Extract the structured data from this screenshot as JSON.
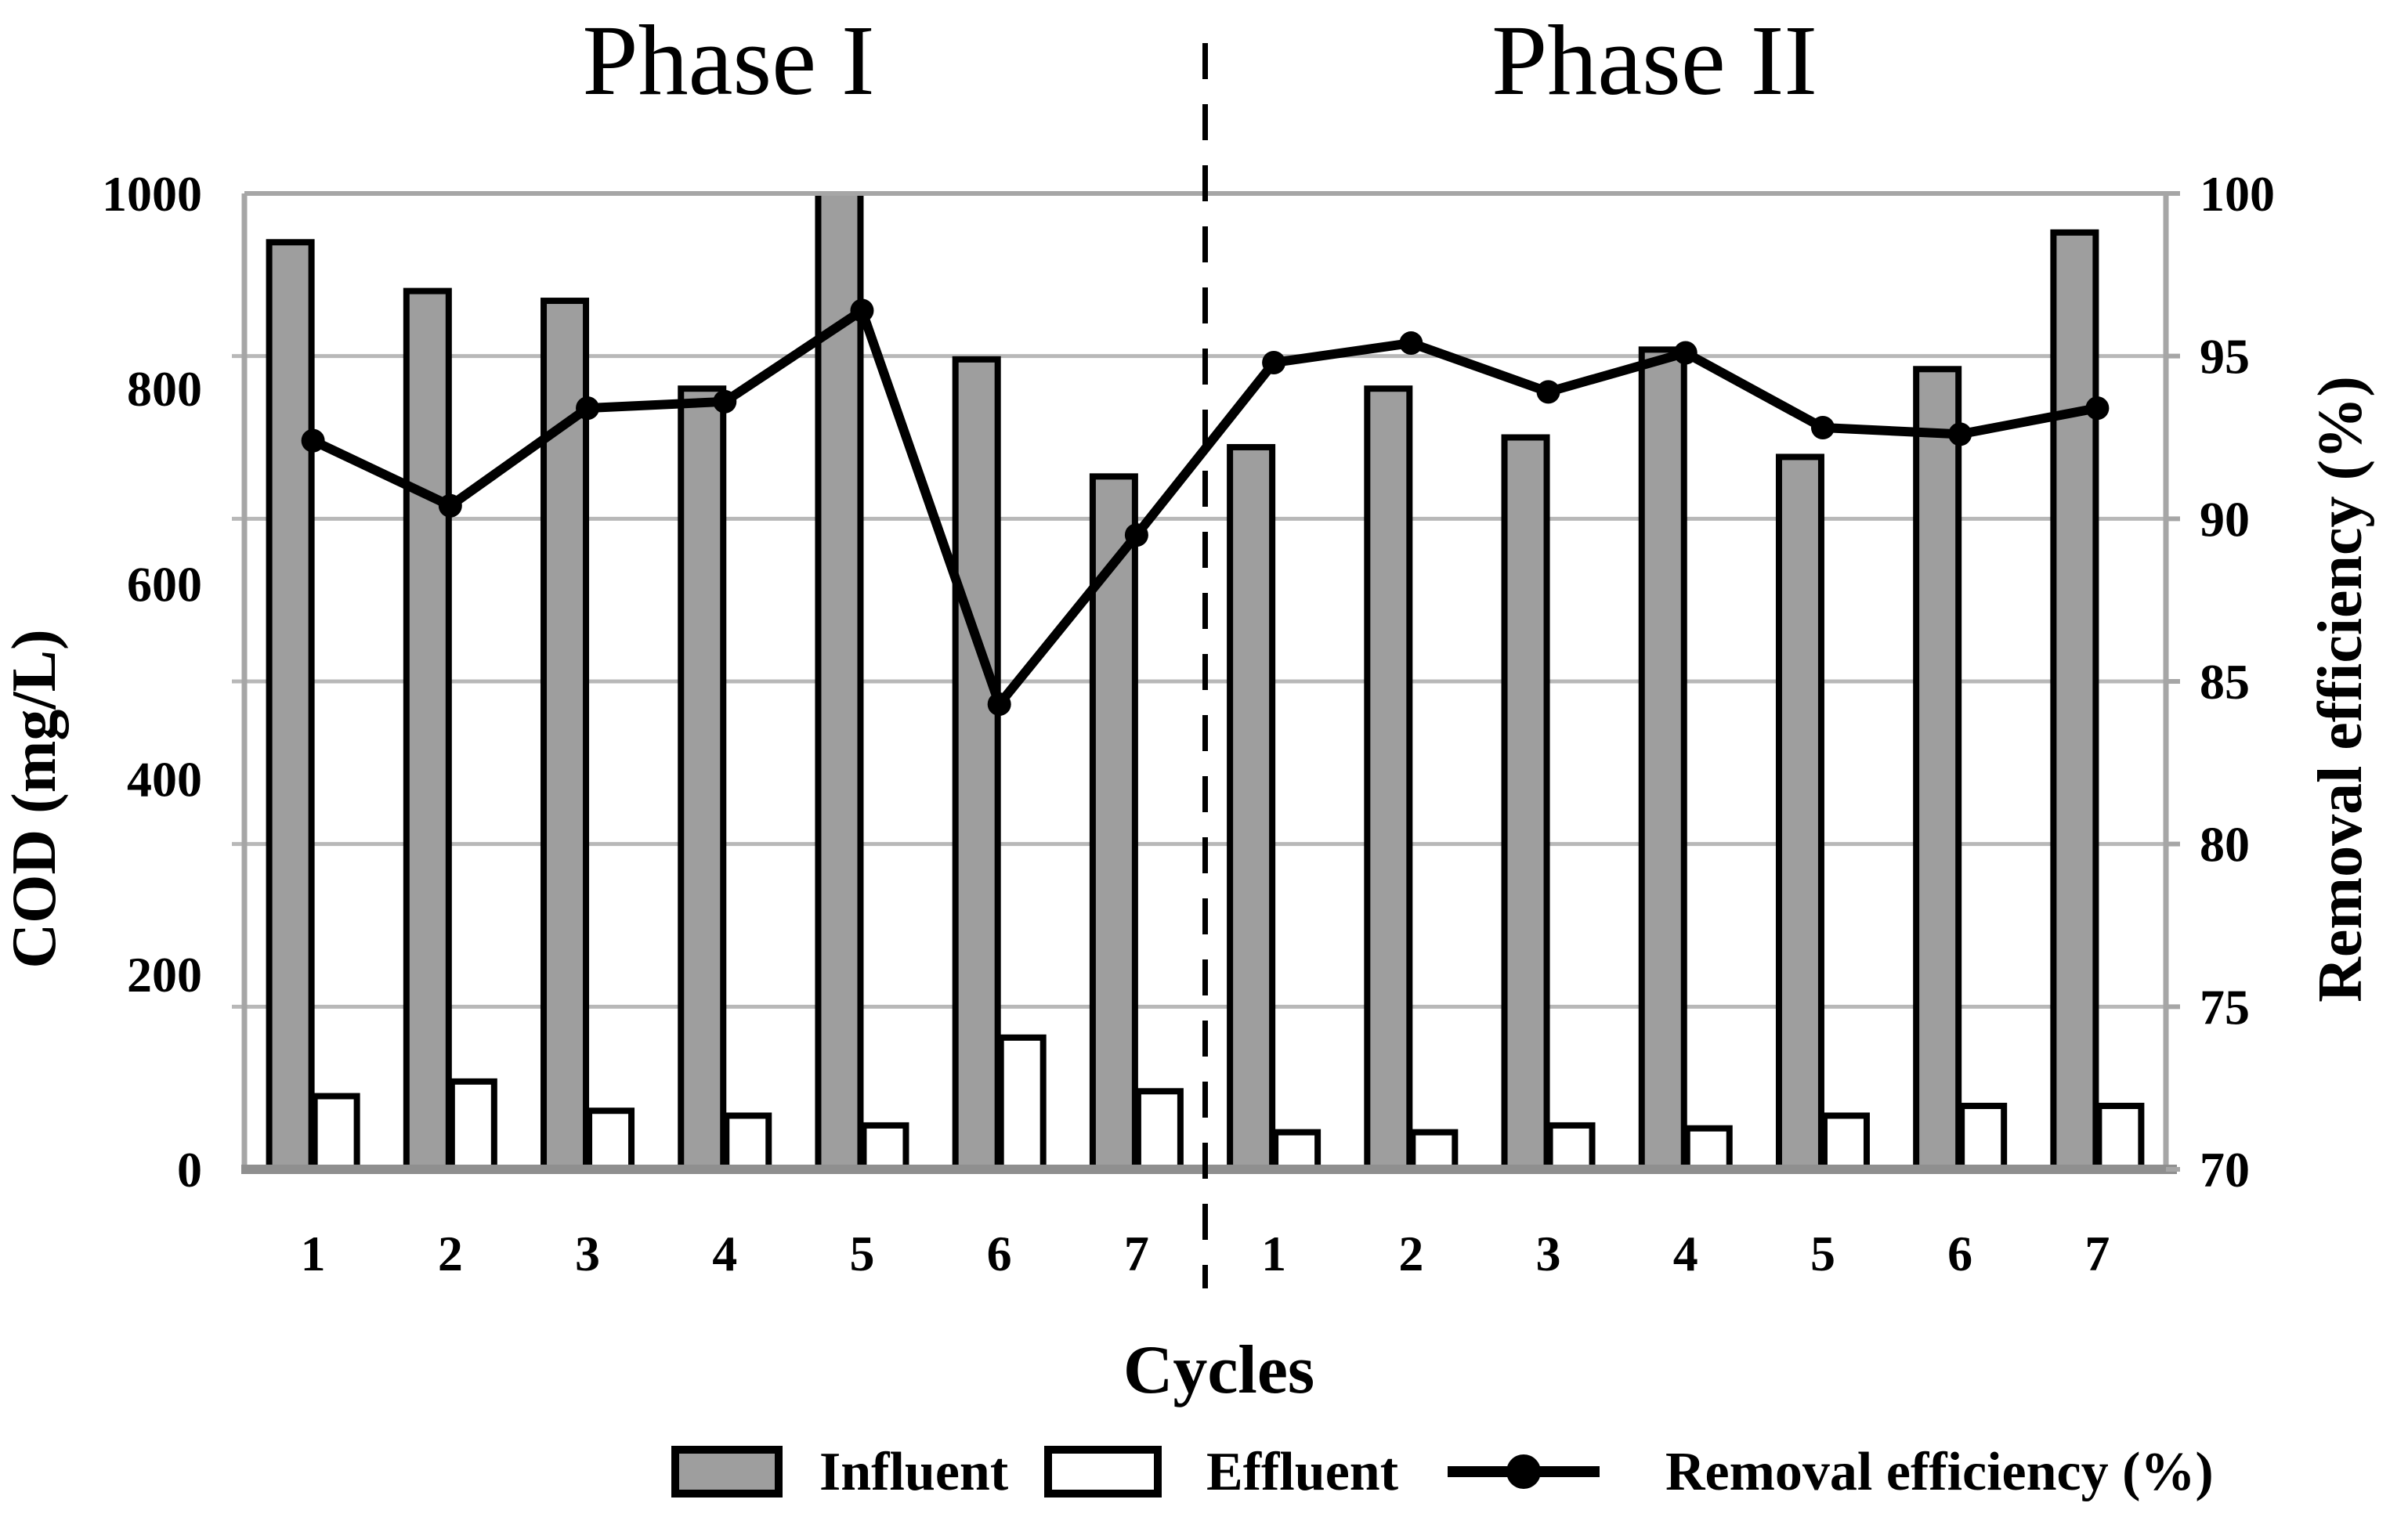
{
  "figure": {
    "phase1_title": "Phase I",
    "phase2_title": "Phase II",
    "x_axis_title": "Cycles",
    "y_left_axis_title": "COD (mg/L)",
    "y_right_axis_title": "Removal  efficiency (%)"
  },
  "legend": {
    "influent_label": "Influent",
    "effluent_label": "Effluent",
    "efficiency_label": "Removal efficiency (%)"
  },
  "colors": {
    "influent_fill": "#9e9e9e",
    "effluent_fill": "#ffffff",
    "bar_outline": "#000000",
    "efficiency_line": "#000000",
    "axis_line": "#a6a6a6",
    "gridline": "#b8b8b8",
    "divider": "#000000",
    "background": "#ffffff"
  },
  "chart_data": {
    "type": "bar",
    "subtype": "dual-axis bar + line combo",
    "title": "",
    "xlabel": "Cycles",
    "x_tick_labels": [
      "1",
      "2",
      "3",
      "4",
      "5",
      "6",
      "7",
      "1",
      "2",
      "3",
      "4",
      "5",
      "6",
      "7"
    ],
    "y_left": {
      "label": "COD (mg/L)",
      "min": 0,
      "max": 1000,
      "ticks": [
        0,
        200,
        400,
        600,
        800,
        1000
      ]
    },
    "y_right": {
      "label": "Removal  efficiency (%)",
      "min": 70,
      "max": 100,
      "ticks": [
        70,
        75,
        80,
        85,
        90,
        95,
        100
      ]
    },
    "grid": "horizontal gridlines at right-axis 5% steps",
    "legend_position": "bottom center",
    "phases": [
      {
        "name": "Phase I",
        "cycles": [
          1,
          2,
          3,
          4,
          5,
          6,
          7
        ],
        "influent_cod_mg_l": [
          950,
          900,
          890,
          800,
          1000,
          830,
          710
        ],
        "effluent_cod_mg_l": [
          75,
          90,
          60,
          55,
          45,
          135,
          80
        ],
        "removal_efficiency_pct": [
          92.4,
          90.4,
          93.4,
          93.6,
          96.4,
          84.3,
          89.5
        ]
      },
      {
        "name": "Phase II",
        "cycles": [
          1,
          2,
          3,
          4,
          5,
          6,
          7
        ],
        "influent_cod_mg_l": [
          740,
          800,
          750,
          840,
          730,
          820,
          960
        ],
        "effluent_cod_mg_l": [
          38,
          38,
          45,
          42,
          55,
          65,
          65
        ],
        "removal_efficiency_pct": [
          94.8,
          95.4,
          93.9,
          95.1,
          92.8,
          92.6,
          93.4
        ]
      }
    ],
    "series": [
      {
        "name": "Influent",
        "type": "bar",
        "axis": "left"
      },
      {
        "name": "Effluent",
        "type": "bar",
        "axis": "left"
      },
      {
        "name": "Removal efficiency (%)",
        "type": "line",
        "axis": "right",
        "marker": "filled-circle"
      }
    ],
    "annotations": {
      "phase_divider": "vertical dashed black line between Phase I cycle 7 and Phase II cycle 1",
      "phase1_cycle5_influent_clipped": "Phase I cycle-5 influent bar reaches the top of the axis (>= 1000 mg/L, drawn clipped at plot top)"
    }
  }
}
